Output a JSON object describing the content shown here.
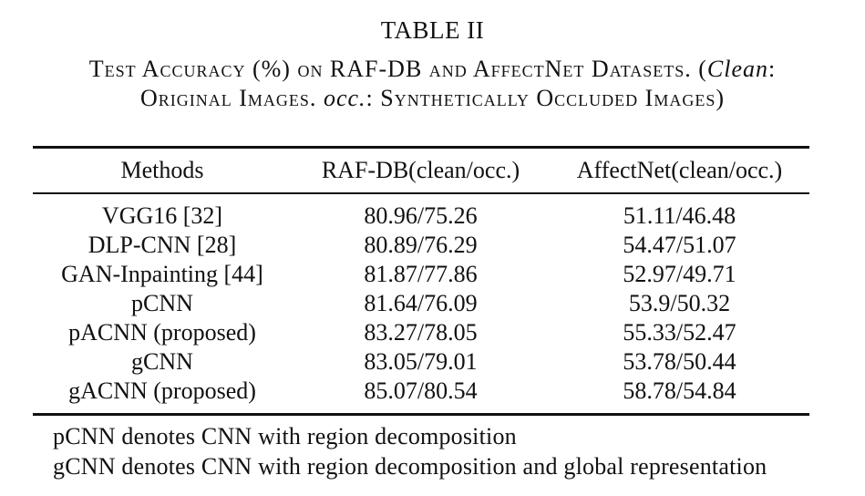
{
  "table_label": "TABLE II",
  "caption": {
    "line1_prefix": "Test Accuracy (%) on RAF-DB and AffectNet Datasets. (",
    "line1_italic": "Clean",
    "line1_suffix": ":",
    "line2_prefix": "Original Images. ",
    "line2_italic": "occ.",
    "line2_suffix": ": Synthetically Occluded Images)"
  },
  "headers": {
    "methods": "Methods",
    "rafdb": "RAF-DB(clean/occ.)",
    "affectnet": "AffectNet(clean/occ.)"
  },
  "rows": [
    {
      "method": "VGG16 [32]",
      "rafdb": "80.96/75.26",
      "affectnet": "51.11/46.48"
    },
    {
      "method": "DLP-CNN [28]",
      "rafdb": "80.89/76.29",
      "affectnet": "54.47/51.07"
    },
    {
      "method": "GAN-Inpainting [44]",
      "rafdb": "81.87/77.86",
      "affectnet": "52.97/49.71"
    },
    {
      "method": "pCNN",
      "rafdb": "81.64/76.09",
      "affectnet": "53.9/50.32"
    },
    {
      "method": "pACNN (proposed)",
      "rafdb": "83.27/78.05",
      "affectnet": "55.33/52.47"
    },
    {
      "method": "gCNN",
      "rafdb": "83.05/79.01",
      "affectnet": "53.78/50.44"
    },
    {
      "method": "gACNN (proposed)",
      "rafdb": "85.07/80.54",
      "affectnet": "58.78/54.84"
    }
  ],
  "notes": [
    "pCNN denotes CNN with region decomposition",
    "gCNN denotes CNN with region decomposition and global representation"
  ]
}
